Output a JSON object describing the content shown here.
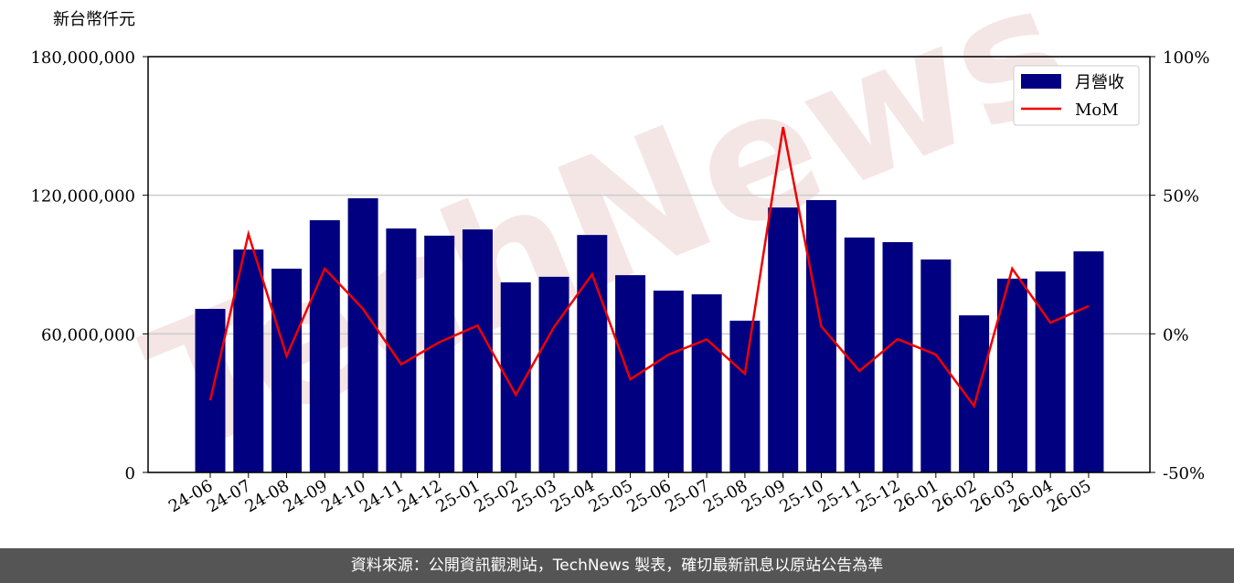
{
  "chart_data": {
    "type": "bar_line",
    "watermark": "TechNews",
    "y_label": "新台幣仟元",
    "categories": [
      "24-06",
      "24-07",
      "24-08",
      "24-09",
      "24-10",
      "24-11",
      "24-12",
      "25-01",
      "25-02",
      "25-03",
      "25-04",
      "25-05",
      "25-06",
      "25-07",
      "25-08",
      "25-09",
      "25-10",
      "25-11",
      "25-12",
      "26-01",
      "26-02",
      "26-03",
      "26-04",
      "26-05"
    ],
    "series": [
      {
        "name": "月營收",
        "color": "#000080",
        "type": "bar",
        "values": [
          70800000,
          96500000,
          88200000,
          109200000,
          118700000,
          105600000,
          102500000,
          105200000,
          82300000,
          84700000,
          102800000,
          85400000,
          78700000,
          77100000,
          65700000,
          114700000,
          117900000,
          101700000,
          99700000,
          92200000,
          68000000,
          83900000,
          87000000,
          95700000
        ]
      },
      {
        "name": "MoM",
        "color": "#ee0000",
        "type": "line",
        "axis": "y2",
        "values": [
          -24,
          36,
          -8,
          23.5,
          9,
          -11,
          -3,
          3,
          -22,
          2.4,
          21.5,
          -16.4,
          -7.5,
          -2,
          -14.4,
          74.6,
          2.7,
          -13.4,
          -1.9,
          -7.5,
          -26,
          23.5,
          4,
          10
        ]
      }
    ],
    "ylim": [
      0,
      180000000
    ],
    "yticks": [
      {
        "value": 0,
        "label": "0"
      },
      {
        "value": 60000000,
        "label": "60,000,000"
      },
      {
        "value": 120000000,
        "label": "120,000,000"
      },
      {
        "value": 180000000,
        "label": "180,000,000"
      }
    ],
    "y2lim": [
      -50,
      100
    ],
    "y2ticks": [
      {
        "value": -50,
        "label": "-50%"
      },
      {
        "value": 0,
        "label": "0%"
      },
      {
        "value": 50,
        "label": "50%"
      },
      {
        "value": 100,
        "label": "100%"
      }
    ],
    "grid": true,
    "legend": "upper right"
  },
  "footer": "資料來源：公開資訊觀測站，TechNews 製表，確切最新訊息以原站公告為準"
}
